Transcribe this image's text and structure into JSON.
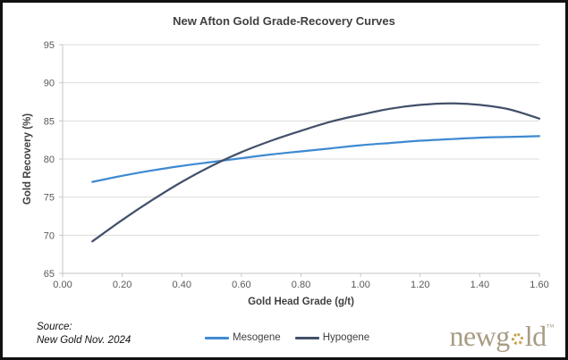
{
  "title": "New Afton Gold Grade-Recovery Curves",
  "chart_data": {
    "type": "line",
    "title": "New Afton Gold Grade-Recovery Curves",
    "xlabel": "Gold Head Grade (g/t)",
    "ylabel": "Gold Recovery (%)",
    "xlim": [
      0,
      1.6
    ],
    "ylim": [
      65,
      95
    ],
    "xtick_labels": [
      "0.00",
      "0.20",
      "0.40",
      "0.60",
      "0.80",
      "1.00",
      "1.20",
      "1.40",
      "1.60"
    ],
    "xtick_values": [
      0,
      0.2,
      0.4,
      0.6,
      0.8,
      1.0,
      1.2,
      1.4,
      1.6
    ],
    "ytick_values": [
      65,
      70,
      75,
      80,
      85,
      90,
      95
    ],
    "grid": "horizontal",
    "legend_position": "bottom",
    "x": [
      0.1,
      0.2,
      0.3,
      0.4,
      0.5,
      0.6,
      0.7,
      0.8,
      0.9,
      1.0,
      1.1,
      1.2,
      1.3,
      1.4,
      1.5,
      1.6
    ],
    "series": [
      {
        "name": "Mesogene",
        "color": "#3e8ad2",
        "values": [
          77.0,
          77.8,
          78.5,
          79.1,
          79.6,
          80.1,
          80.6,
          81.0,
          81.4,
          81.8,
          82.1,
          82.4,
          82.6,
          82.8,
          82.9,
          83.0
        ]
      },
      {
        "name": "Hypogene",
        "color": "#42506a",
        "values": [
          69.2,
          72.0,
          74.6,
          77.0,
          79.1,
          80.9,
          82.4,
          83.7,
          84.9,
          85.8,
          86.6,
          87.1,
          87.3,
          87.1,
          86.5,
          85.3
        ]
      }
    ]
  },
  "source": {
    "label": "Source:",
    "text": "New Gold Nov. 2024"
  },
  "logo": {
    "name": "newgold",
    "part1": "newg",
    "part2": "ld",
    "trademark": "TM"
  },
  "colors": {
    "gridline": "#dcdcdc",
    "axis": "#c6c6c6",
    "tick_text": "#595959",
    "axis_title_text": "#404040",
    "title_text": "#404040",
    "logo_text": "#a89c84",
    "logo_o": "#c5a14c",
    "border": "#111111"
  }
}
